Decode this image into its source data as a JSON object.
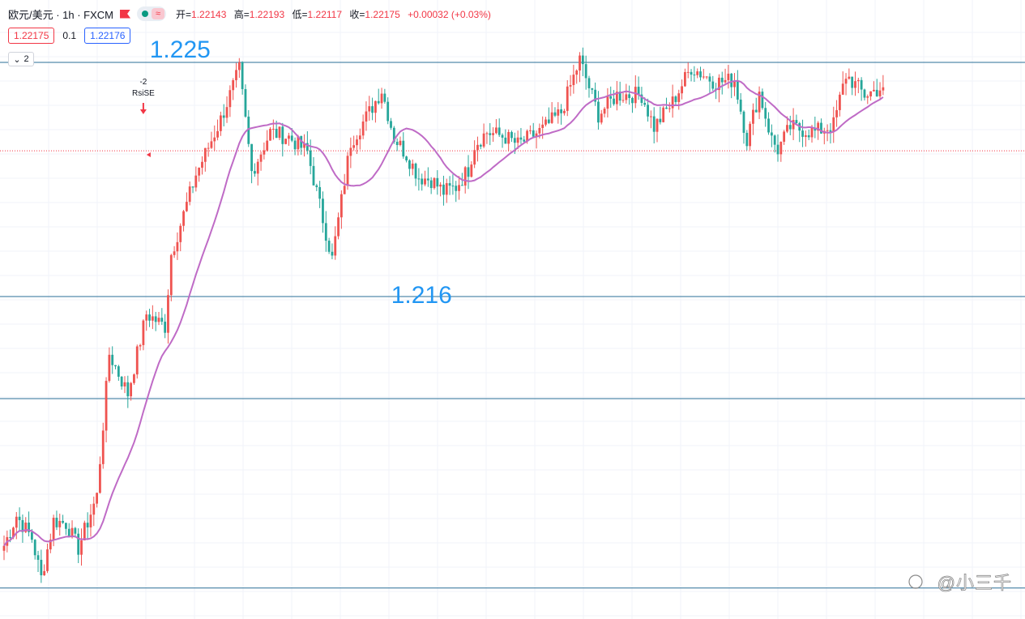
{
  "header": {
    "symbol": "欧元/美元 · 1h · FXCM",
    "wave_icon": "≈",
    "ohlc": [
      {
        "k": "开=",
        "v": "1.22143"
      },
      {
        "k": "高=",
        "v": "1.22193"
      },
      {
        "k": "低=",
        "v": "1.22117"
      },
      {
        "k": "收=",
        "v": "1.22175"
      },
      {
        "k": "",
        "v": "+0.00032 (+0.03%)"
      }
    ]
  },
  "prices": {
    "bid": "1.22175",
    "spread": "0.1",
    "ask": "1.22176"
  },
  "indicator_panel": {
    "count": "2"
  },
  "watermark": "@小三千",
  "chart_data": {
    "type": "candlestick",
    "symbol": "EUR/USD",
    "timeframe": "1h",
    "up_color": "#ef5350",
    "down_color": "#26a69a",
    "ma_color": "#bf6bc6",
    "horizontal_lines": [
      1.2253,
      1.2159,
      1.2118,
      1.2042
    ],
    "current_price": 1.22175,
    "annotations": [
      {
        "text": "1.225",
        "price": 1.2253,
        "bar": 57,
        "position": "above-line"
      },
      {
        "text": "1.216",
        "price": 1.2159,
        "bar": 135,
        "position": "on-line"
      }
    ],
    "signal": {
      "bar": 45,
      "label_top": "-2",
      "label_bottom": "RsiSE"
    },
    "anchor_closes": [
      [
        0,
        1.2059
      ],
      [
        4,
        1.2071
      ],
      [
        9,
        1.2062
      ],
      [
        12,
        1.2046
      ],
      [
        16,
        1.2069
      ],
      [
        20,
        1.2068
      ],
      [
        24,
        1.2058
      ],
      [
        30,
        1.2079
      ],
      [
        34,
        1.2136
      ],
      [
        40,
        1.212
      ],
      [
        46,
        1.2152
      ],
      [
        52,
        1.2147
      ],
      [
        54,
        1.2176
      ],
      [
        62,
        1.2208
      ],
      [
        70,
        1.223
      ],
      [
        76,
        1.225
      ],
      [
        80,
        1.2209
      ],
      [
        86,
        1.2225
      ],
      [
        92,
        1.2223
      ],
      [
        98,
        1.2217
      ],
      [
        106,
        1.2174
      ],
      [
        112,
        1.2221
      ],
      [
        118,
        1.2233
      ],
      [
        122,
        1.2242
      ],
      [
        126,
        1.2223
      ],
      [
        130,
        1.2216
      ],
      [
        134,
        1.2207
      ],
      [
        138,
        1.2206
      ],
      [
        142,
        1.2201
      ],
      [
        146,
        1.2203
      ],
      [
        150,
        1.221
      ],
      [
        152,
        1.222
      ],
      [
        156,
        1.2225
      ],
      [
        162,
        1.2223
      ],
      [
        166,
        1.222
      ],
      [
        174,
        1.2226
      ],
      [
        180,
        1.2233
      ],
      [
        186,
        1.2254
      ],
      [
        192,
        1.2232
      ],
      [
        198,
        1.224
      ],
      [
        206,
        1.224
      ],
      [
        210,
        1.2227
      ],
      [
        216,
        1.2237
      ],
      [
        222,
        1.2251
      ],
      [
        230,
        1.2245
      ],
      [
        236,
        1.2246
      ],
      [
        240,
        1.2222
      ],
      [
        244,
        1.2241
      ],
      [
        248,
        1.2222
      ],
      [
        250,
        1.2218
      ],
      [
        254,
        1.2227
      ],
      [
        262,
        1.2225
      ],
      [
        268,
        1.2228
      ],
      [
        272,
        1.2248
      ],
      [
        278,
        1.224
      ],
      [
        284,
        1.2243
      ]
    ]
  }
}
